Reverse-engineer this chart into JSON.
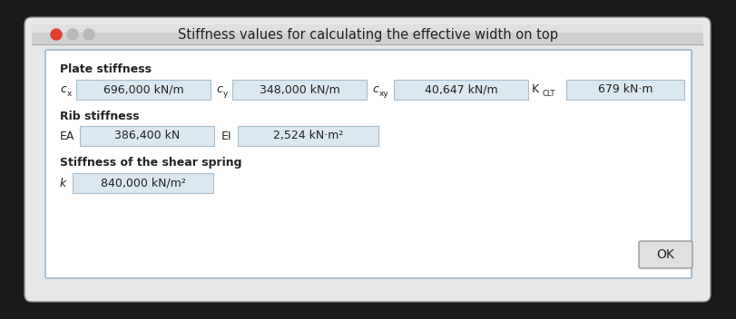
{
  "title": "Stiffness values for calculating the effective width on top",
  "title_fontsize": 10.5,
  "bg_color": "#1a1a1a",
  "outer_dialog_bg": "#e8e8e8",
  "outer_dialog_edge": "#888888",
  "title_bar_bg": "#d0d0d0",
  "title_bar_top": "#e8e8e8",
  "inner_bg": "#ffffff",
  "inner_border": "#9ab8cc",
  "field_bg": "#dce8f0",
  "field_border": "#aabccc",
  "ok_bg": "#e0e0e0",
  "ok_border": "#999999",
  "traffic_red": "#e04030",
  "traffic_gray1": "#b8b8b8",
  "traffic_gray2": "#b8b8b8",
  "plate_stiffness_label": "Plate stiffness",
  "rib_stiffness_label": "Rib stiffness",
  "shear_label": "Stiffness of the shear spring",
  "cx_val": "696,000 kN/m",
  "cy_val": "348,000 kN/m",
  "cxy_val": "40,647 kN/m",
  "KCLT_val": "679 kN·m",
  "EA_val": "386,400 kN",
  "EI_val": "2,524 kN·m²",
  "k_val": "840,000 kN/m²",
  "ok_label": "OK",
  "text_color": "#222222",
  "fs": 9.0
}
